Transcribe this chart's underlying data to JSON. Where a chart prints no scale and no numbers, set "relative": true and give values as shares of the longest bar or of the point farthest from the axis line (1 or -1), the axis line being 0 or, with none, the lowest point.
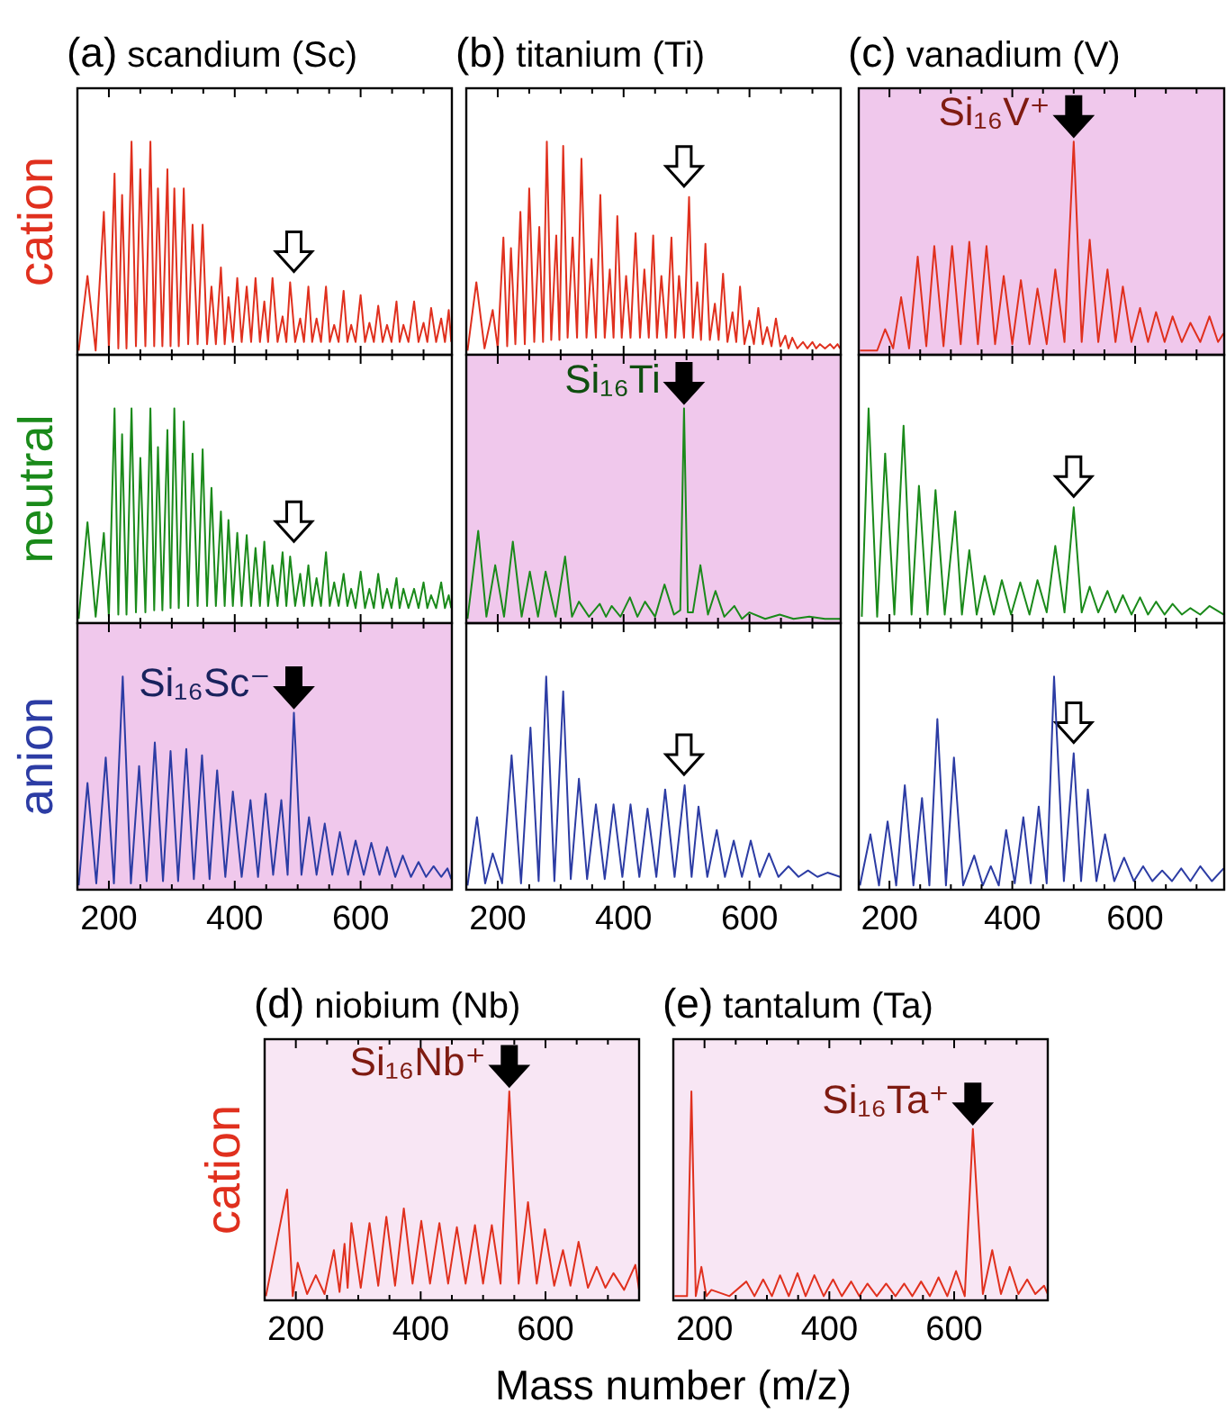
{
  "chart_data": [
    {
      "type": "line",
      "title": "(a) scandium (Sc)",
      "ylabel": "cation",
      "color": "#e0301e",
      "relative": true,
      "tick_labels": false,
      "xlim": [
        150,
        745
      ],
      "xticks": [
        200,
        {
          "value": 250,
          "label": null
        },
        {
          "value": 300,
          "label": null
        },
        {
          "value": 350,
          "label": null
        },
        400,
        {
          "value": 450,
          "label": null
        },
        {
          "value": 500,
          "label": null
        },
        {
          "value": 550,
          "label": null
        },
        600,
        {
          "value": 650,
          "label": null
        },
        {
          "value": 700,
          "label": null
        }
      ],
      "x": [
        152,
        166,
        179,
        192,
        200,
        209,
        215,
        221,
        228,
        236,
        243,
        250,
        258,
        266,
        272,
        278,
        285,
        293,
        298,
        304,
        311,
        319,
        326,
        333,
        341,
        349,
        356,
        363,
        370,
        378,
        384,
        390,
        397,
        404,
        411,
        419,
        426,
        433,
        440,
        447,
        453,
        460,
        468,
        476,
        482,
        488,
        496,
        504,
        510,
        517,
        523,
        530,
        537,
        545,
        551,
        558,
        565,
        573,
        579,
        585,
        592,
        600,
        607,
        614,
        621,
        628,
        635,
        642,
        649,
        657,
        662,
        668,
        676,
        685,
        692,
        700,
        706,
        712,
        720,
        728,
        734,
        740,
        744
      ],
      "values": [
        0.02,
        0.37,
        0.02,
        0.67,
        0.03,
        0.85,
        0.03,
        0.75,
        0.03,
        1,
        0.04,
        0.87,
        0.04,
        1,
        0.04,
        0.78,
        0.04,
        0.87,
        0.04,
        0.78,
        0.04,
        0.78,
        0.05,
        0.61,
        0.05,
        0.61,
        0.05,
        0.32,
        0.05,
        0.41,
        0.05,
        0.27,
        0.06,
        0.36,
        0.06,
        0.32,
        0.06,
        0.36,
        0.06,
        0.25,
        0.06,
        0.36,
        0.06,
        0.18,
        0.06,
        0.34,
        0.06,
        0.17,
        0.06,
        0.32,
        0.06,
        0.17,
        0.06,
        0.32,
        0.06,
        0.14,
        0.06,
        0.3,
        0.06,
        0.14,
        0.06,
        0.28,
        0.06,
        0.15,
        0.06,
        0.23,
        0.06,
        0.14,
        0.06,
        0.25,
        0.06,
        0.14,
        0.06,
        0.25,
        0.06,
        0.15,
        0.06,
        0.22,
        0.06,
        0.17,
        0.06,
        0.21,
        0.06
      ]
    },
    {
      "type": "line",
      "title": "(b) titanium (Ti)",
      "color": "#e0301e",
      "relative": true,
      "tick_labels": false,
      "xlim": [
        150,
        745
      ],
      "xticks": [
        200,
        {
          "value": 250,
          "label": null
        },
        {
          "value": 300,
          "label": null
        },
        {
          "value": 350,
          "label": null
        },
        400,
        {
          "value": 450,
          "label": null
        },
        {
          "value": 500,
          "label": null
        },
        {
          "value": 550,
          "label": null
        },
        600,
        {
          "value": 650,
          "label": null
        },
        {
          "value": 700,
          "label": null
        }
      ],
      "x": [
        152,
        166,
        179,
        192,
        200,
        209,
        215,
        221,
        228,
        236,
        243,
        250,
        258,
        266,
        272,
        278,
        285,
        293,
        298,
        304,
        311,
        319,
        326,
        333,
        341,
        349,
        356,
        363,
        370,
        378,
        384,
        390,
        397,
        404,
        411,
        419,
        426,
        433,
        440,
        447,
        453,
        460,
        468,
        476,
        482,
        488,
        496,
        504,
        510,
        517,
        523,
        530,
        537,
        545,
        551,
        558,
        565,
        573,
        579,
        585,
        592,
        600,
        607,
        614,
        621,
        628,
        635,
        642,
        649,
        657,
        662,
        668,
        676,
        685,
        692,
        700,
        706,
        712,
        720,
        728,
        734,
        740,
        744
      ],
      "values": [
        0.02,
        0.34,
        0.03,
        0.21,
        0.03,
        0.55,
        0.04,
        0.5,
        0.05,
        0.67,
        0.05,
        0.78,
        0.06,
        0.6,
        0.06,
        1,
        0.07,
        0.56,
        0.07,
        0.98,
        0.08,
        0.55,
        0.08,
        0.92,
        0.08,
        0.45,
        0.08,
        0.75,
        0.08,
        0.4,
        0.08,
        0.65,
        0.08,
        0.37,
        0.08,
        0.57,
        0.08,
        0.4,
        0.08,
        0.56,
        0.08,
        0.37,
        0.08,
        0.55,
        0.08,
        0.37,
        0.08,
        0.74,
        0.08,
        0.34,
        0.07,
        0.52,
        0.07,
        0.24,
        0.07,
        0.38,
        0.06,
        0.2,
        0.06,
        0.32,
        0.05,
        0.16,
        0.05,
        0.22,
        0.05,
        0.13,
        0.04,
        0.17,
        0.04,
        0.09,
        0.03,
        0.08,
        0.03,
        0.06,
        0.03,
        0.06,
        0.03,
        0.05,
        0.03,
        0.05,
        0.03,
        0.05,
        0.03
      ]
    },
    {
      "type": "line",
      "title": "(c) vanadium (V)",
      "color": "#e0301e",
      "relative": true,
      "tick_labels": false,
      "xlim": [
        150,
        745
      ],
      "xticks": [
        200,
        {
          "value": 250,
          "label": null
        },
        {
          "value": 300,
          "label": null
        },
        {
          "value": 350,
          "label": null
        },
        400,
        {
          "value": 450,
          "label": null
        },
        {
          "value": 500,
          "label": null
        },
        {
          "value": 550,
          "label": null
        },
        600,
        {
          "value": 650,
          "label": null
        },
        {
          "value": 700,
          "label": null
        }
      ],
      "bands": [
        {
          "axis": "x",
          "from": 150,
          "to": 745,
          "color": "#f0c8ec"
        }
      ],
      "annotations": [
        {
          "text": "Si₁₆V⁺",
          "x": 500,
          "y": 1
        }
      ],
      "x": [
        152,
        180,
        193,
        206,
        219,
        232,
        246,
        260,
        273,
        288,
        302,
        316,
        330,
        344,
        358,
        372,
        386,
        400,
        414,
        428,
        441,
        456,
        470,
        485,
        500,
        513,
        526,
        540,
        555,
        568,
        580,
        594,
        608,
        621,
        634,
        648,
        661,
        676,
        690,
        706,
        721,
        735,
        744
      ],
      "values": [
        0.02,
        0.02,
        0.12,
        0.03,
        0.27,
        0.03,
        0.46,
        0.04,
        0.51,
        0.04,
        0.51,
        0.05,
        0.53,
        0.05,
        0.51,
        0.05,
        0.37,
        0.05,
        0.35,
        0.05,
        0.31,
        0.05,
        0.4,
        0.06,
        1,
        0.06,
        0.54,
        0.06,
        0.4,
        0.06,
        0.32,
        0.06,
        0.22,
        0.06,
        0.2,
        0.06,
        0.18,
        0.06,
        0.15,
        0.06,
        0.18,
        0.06,
        0.1
      ]
    },
    {
      "type": "line",
      "ylabel": "neutral",
      "color": "#1a8a1a",
      "relative": true,
      "tick_labels": false,
      "xlim": [
        150,
        745
      ],
      "xticks": [
        200,
        {
          "value": 250,
          "label": null
        },
        {
          "value": 300,
          "label": null
        },
        {
          "value": 350,
          "label": null
        },
        400,
        {
          "value": 450,
          "label": null
        },
        {
          "value": 500,
          "label": null
        },
        {
          "value": 550,
          "label": null
        },
        600,
        {
          "value": 650,
          "label": null
        },
        {
          "value": 700,
          "label": null
        }
      ],
      "x": [
        152,
        166,
        179,
        192,
        200,
        209,
        215,
        221,
        228,
        236,
        243,
        250,
        258,
        266,
        272,
        278,
        285,
        293,
        298,
        304,
        311,
        319,
        326,
        333,
        341,
        349,
        356,
        363,
        370,
        378,
        384,
        390,
        397,
        404,
        411,
        419,
        426,
        433,
        440,
        447,
        453,
        460,
        468,
        476,
        482,
        488,
        496,
        504,
        510,
        517,
        523,
        530,
        537,
        545,
        551,
        558,
        565,
        573,
        579,
        585,
        592,
        600,
        607,
        614,
        621,
        628,
        635,
        642,
        649,
        657,
        662,
        668,
        676,
        685,
        692,
        700,
        706,
        712,
        720,
        728,
        734,
        740,
        744
      ],
      "values": [
        0.02,
        0.47,
        0.03,
        0.42,
        0.03,
        1,
        0.04,
        0.88,
        0.04,
        1,
        0.05,
        0.77,
        0.05,
        1,
        0.06,
        0.82,
        0.06,
        0.9,
        0.07,
        1,
        0.07,
        0.94,
        0.08,
        0.79,
        0.08,
        0.81,
        0.08,
        0.63,
        0.08,
        0.52,
        0.08,
        0.48,
        0.08,
        0.42,
        0.08,
        0.41,
        0.08,
        0.35,
        0.08,
        0.38,
        0.08,
        0.27,
        0.08,
        0.33,
        0.08,
        0.31,
        0.08,
        0.23,
        0.08,
        0.27,
        0.08,
        0.21,
        0.08,
        0.33,
        0.08,
        0.19,
        0.08,
        0.23,
        0.08,
        0.16,
        0.07,
        0.24,
        0.07,
        0.16,
        0.07,
        0.23,
        0.07,
        0.16,
        0.07,
        0.21,
        0.07,
        0.16,
        0.07,
        0.16,
        0.07,
        0.19,
        0.07,
        0.13,
        0.07,
        0.19,
        0.07,
        0.13,
        0.07
      ]
    },
    {
      "type": "line",
      "color": "#1a8a1a",
      "relative": true,
      "tick_labels": false,
      "xlim": [
        150,
        745
      ],
      "xticks": [
        200,
        {
          "value": 250,
          "label": null
        },
        {
          "value": 300,
          "label": null
        },
        {
          "value": 350,
          "label": null
        },
        400,
        {
          "value": 450,
          "label": null
        },
        {
          "value": 500,
          "label": null
        },
        {
          "value": 550,
          "label": null
        },
        600,
        {
          "value": 650,
          "label": null
        },
        {
          "value": 700,
          "label": null
        }
      ],
      "bands": [
        {
          "axis": "x",
          "from": 150,
          "to": 745,
          "color": "#f0c8ec"
        }
      ],
      "annotations": [
        {
          "text": "Si₁₆Ti",
          "x": 496,
          "y": 1
        }
      ],
      "x": [
        152,
        169,
        182,
        196,
        210,
        224,
        238,
        251,
        264,
        276,
        292,
        307,
        318,
        329,
        345,
        362,
        372,
        381,
        395,
        410,
        422,
        434,
        450,
        465,
        480,
        490,
        496,
        502,
        510,
        522,
        534,
        546,
        560,
        576,
        588,
        600,
        625,
        648,
        670,
        695,
        720,
        744
      ],
      "values": [
        0.02,
        0.43,
        0.03,
        0.27,
        0.03,
        0.38,
        0.03,
        0.24,
        0.03,
        0.24,
        0.03,
        0.31,
        0.03,
        0.1,
        0.03,
        0.09,
        0.03,
        0.08,
        0.03,
        0.12,
        0.03,
        0.1,
        0.03,
        0.18,
        0.04,
        0.06,
        1,
        0.05,
        0.05,
        0.27,
        0.04,
        0.15,
        0.03,
        0.08,
        0.02,
        0.05,
        0.02,
        0.04,
        0.02,
        0.03,
        0.02,
        0.02
      ]
    },
    {
      "type": "line",
      "color": "#1a8a1a",
      "relative": true,
      "tick_labels": false,
      "xlim": [
        150,
        745
      ],
      "xticks": [
        200,
        {
          "value": 250,
          "label": null
        },
        {
          "value": 300,
          "label": null
        },
        {
          "value": 350,
          "label": null
        },
        400,
        {
          "value": 450,
          "label": null
        },
        {
          "value": 500,
          "label": null
        },
        {
          "value": 550,
          "label": null
        },
        600,
        {
          "value": 650,
          "label": null
        },
        {
          "value": 700,
          "label": null
        }
      ],
      "x": [
        155,
        166,
        180,
        193,
        208,
        223,
        236,
        248,
        262,
        275,
        290,
        307,
        318,
        330,
        342,
        355,
        370,
        383,
        398,
        413,
        428,
        441,
        456,
        470,
        485,
        500,
        513,
        526,
        540,
        555,
        568,
        580,
        594,
        608,
        621,
        634,
        648,
        661,
        676,
        690,
        706,
        721,
        744
      ],
      "values": [
        0.03,
        1,
        0.03,
        0.79,
        0.04,
        0.92,
        0.04,
        0.64,
        0.04,
        0.62,
        0.04,
        0.52,
        0.04,
        0.34,
        0.04,
        0.22,
        0.04,
        0.2,
        0.04,
        0.19,
        0.04,
        0.2,
        0.05,
        0.36,
        0.05,
        0.54,
        0.05,
        0.17,
        0.05,
        0.15,
        0.05,
        0.13,
        0.04,
        0.12,
        0.04,
        0.1,
        0.04,
        0.09,
        0.04,
        0.07,
        0.04,
        0.08,
        0.04
      ]
    },
    {
      "type": "line",
      "ylabel": "anion",
      "color": "#2c3ca4",
      "relative": true,
      "tick_labels": "x",
      "xlim": [
        150,
        745
      ],
      "xticks": [
        200,
        {
          "value": 250,
          "label": null
        },
        {
          "value": 300,
          "label": null
        },
        {
          "value": 350,
          "label": null
        },
        400,
        {
          "value": 450,
          "label": null
        },
        {
          "value": 500,
          "label": null
        },
        {
          "value": 550,
          "label": null
        },
        600,
        {
          "value": 650,
          "label": null
        },
        {
          "value": 700,
          "label": null
        }
      ],
      "bands": [
        {
          "axis": "x",
          "from": 150,
          "to": 745,
          "color": "#f0c8ec"
        }
      ],
      "annotations": [
        {
          "text": "Si₁₆Sc⁻",
          "x": 494,
          "y": 0.83
        }
      ],
      "x": [
        152,
        166,
        180,
        195,
        208,
        222,
        235,
        248,
        260,
        273,
        286,
        298,
        310,
        323,
        335,
        348,
        360,
        372,
        385,
        397,
        411,
        425,
        437,
        449,
        461,
        474,
        484,
        494,
        506,
        518,
        530,
        543,
        555,
        567,
        580,
        592,
        605,
        617,
        630,
        642,
        655,
        667,
        680,
        692,
        704,
        716,
        728,
        738,
        744
      ],
      "values": [
        0.02,
        0.5,
        0.03,
        0.62,
        0.03,
        1,
        0.03,
        0.58,
        0.04,
        0.69,
        0.04,
        0.65,
        0.04,
        0.66,
        0.05,
        0.63,
        0.05,
        0.56,
        0.06,
        0.46,
        0.06,
        0.42,
        0.06,
        0.45,
        0.07,
        0.42,
        0.07,
        0.83,
        0.07,
        0.34,
        0.07,
        0.31,
        0.07,
        0.27,
        0.07,
        0.23,
        0.07,
        0.22,
        0.07,
        0.2,
        0.06,
        0.16,
        0.06,
        0.13,
        0.06,
        0.11,
        0.06,
        0.1,
        0.05
      ]
    },
    {
      "type": "line",
      "color": "#2c3ca4",
      "relative": true,
      "tick_labels": "x",
      "xlim": [
        150,
        745
      ],
      "xticks": [
        200,
        {
          "value": 250,
          "label": null
        },
        {
          "value": 300,
          "label": null
        },
        {
          "value": 350,
          "label": null
        },
        400,
        {
          "value": 450,
          "label": null
        },
        {
          "value": 500,
          "label": null
        },
        {
          "value": 550,
          "label": null
        },
        600,
        {
          "value": 650,
          "label": null
        },
        {
          "value": 700,
          "label": null
        }
      ],
      "x": [
        152,
        167,
        180,
        192,
        207,
        222,
        237,
        252,
        265,
        277,
        290,
        304,
        316,
        329,
        342,
        356,
        370,
        384,
        398,
        411,
        425,
        438,
        452,
        466,
        481,
        497,
        508,
        519,
        533,
        548,
        561,
        575,
        588,
        602,
        616,
        631,
        646,
        662,
        678,
        693,
        708,
        724,
        744
      ],
      "values": [
        0.02,
        0.34,
        0.03,
        0.17,
        0.03,
        0.63,
        0.03,
        0.76,
        0.04,
        1,
        0.04,
        0.93,
        0.05,
        0.52,
        0.05,
        0.4,
        0.05,
        0.4,
        0.06,
        0.4,
        0.06,
        0.38,
        0.06,
        0.47,
        0.06,
        0.49,
        0.06,
        0.39,
        0.06,
        0.28,
        0.06,
        0.23,
        0.06,
        0.23,
        0.06,
        0.17,
        0.06,
        0.11,
        0.06,
        0.09,
        0.06,
        0.08,
        0.06
      ]
    },
    {
      "type": "line",
      "color": "#2c3ca4",
      "relative": true,
      "tick_labels": "x",
      "xlim": [
        150,
        745
      ],
      "xticks": [
        200,
        {
          "value": 250,
          "label": null
        },
        {
          "value": 300,
          "label": null
        },
        {
          "value": 350,
          "label": null
        },
        400,
        {
          "value": 450,
          "label": null
        },
        {
          "value": 500,
          "label": null
        },
        {
          "value": 550,
          "label": null
        },
        600,
        {
          "value": 650,
          "label": null
        },
        {
          "value": 700,
          "label": null
        }
      ],
      "x": [
        152,
        169,
        183,
        197,
        211,
        225,
        239,
        253,
        265,
        278,
        292,
        305,
        320,
        338,
        352,
        365,
        378,
        390,
        404,
        418,
        430,
        443,
        456,
        468,
        484,
        500,
        512,
        523,
        537,
        551,
        566,
        582,
        598,
        613,
        628,
        644,
        660,
        675,
        690,
        706,
        725,
        744
      ],
      "values": [
        0.02,
        0.26,
        0.02,
        0.32,
        0.02,
        0.49,
        0.02,
        0.43,
        0.02,
        0.8,
        0.02,
        0.62,
        0.02,
        0.16,
        0.02,
        0.11,
        0.02,
        0.28,
        0.03,
        0.34,
        0.03,
        0.39,
        0.03,
        1,
        0.04,
        0.64,
        0.04,
        0.47,
        0.04,
        0.26,
        0.04,
        0.15,
        0.04,
        0.11,
        0.04,
        0.09,
        0.04,
        0.1,
        0.04,
        0.11,
        0.04,
        0.1
      ]
    },
    {
      "type": "line",
      "title": "(d) niobium (Nb)",
      "ylabel": "cation",
      "xlabel": "Mass number (m/z)",
      "color": "#e0301e",
      "relative": true,
      "tick_labels": "x",
      "xlim": [
        150,
        750
      ],
      "xticks": [
        200,
        {
          "value": 250,
          "label": null
        },
        {
          "value": 300,
          "label": null
        },
        {
          "value": 350,
          "label": null
        },
        400,
        {
          "value": 450,
          "label": null
        },
        {
          "value": 500,
          "label": null
        },
        {
          "value": 550,
          "label": null
        },
        600,
        {
          "value": 650,
          "label": null
        },
        {
          "value": 700,
          "label": null
        }
      ],
      "bands": [
        {
          "axis": "x",
          "from": 150,
          "to": 750,
          "color": "#f8e6f4"
        }
      ],
      "annotations": [
        {
          "text": "Si₁₆Nb⁺",
          "x": 542,
          "y": 1
        }
      ],
      "x": [
        152,
        186,
        195,
        203,
        218,
        232,
        246,
        261,
        270,
        278,
        283,
        289,
        304,
        318,
        332,
        345,
        359,
        373,
        387,
        401,
        415,
        430,
        444,
        458,
        472,
        487,
        500,
        514,
        528,
        542,
        557,
        572,
        586,
        599,
        614,
        628,
        640,
        653,
        668,
        682,
        696,
        709,
        726,
        744,
        750
      ],
      "values": [
        0.02,
        0.53,
        0.02,
        0.18,
        0.03,
        0.12,
        0.03,
        0.24,
        0.04,
        0.27,
        0.06,
        0.37,
        0.06,
        0.37,
        0.07,
        0.4,
        0.07,
        0.44,
        0.08,
        0.38,
        0.08,
        0.37,
        0.08,
        0.35,
        0.08,
        0.36,
        0.08,
        0.36,
        0.08,
        1,
        0.08,
        0.47,
        0.08,
        0.34,
        0.07,
        0.24,
        0.07,
        0.28,
        0.06,
        0.16,
        0.06,
        0.13,
        0.05,
        0.17,
        0.05
      ]
    },
    {
      "type": "line",
      "title": "(e) tantalum (Ta)",
      "color": "#e0301e",
      "relative": true,
      "tick_labels": "x",
      "xlim": [
        150,
        750
      ],
      "xticks": [
        200,
        {
          "value": 250,
          "label": null
        },
        {
          "value": 300,
          "label": null
        },
        {
          "value": 350,
          "label": null
        },
        400,
        {
          "value": 450,
          "label": null
        },
        {
          "value": 500,
          "label": null
        },
        {
          "value": 550,
          "label": null
        },
        600,
        {
          "value": 650,
          "label": null
        },
        {
          "value": 700,
          "label": null
        }
      ],
      "bands": [
        {
          "axis": "x",
          "from": 150,
          "to": 750,
          "color": "#f8e6f4"
        }
      ],
      "annotations": [
        {
          "text": "Si₁₆Ta⁺",
          "x": 630,
          "y": 0.82
        }
      ],
      "x": [
        152,
        172,
        179,
        186,
        195,
        203,
        211,
        240,
        267,
        280,
        294,
        308,
        321,
        335,
        349,
        362,
        376,
        391,
        406,
        420,
        435,
        448,
        461,
        476,
        491,
        506,
        520,
        533,
        547,
        561,
        575,
        589,
        603,
        617,
        630,
        646,
        661,
        675,
        689,
        703,
        717,
        730,
        744,
        750
      ],
      "values": [
        0.02,
        0.02,
        1,
        0.02,
        0.16,
        0.02,
        0.05,
        0.02,
        0.09,
        0.02,
        0.1,
        0.02,
        0.12,
        0.02,
        0.13,
        0.02,
        0.12,
        0.02,
        0.1,
        0.02,
        0.09,
        0.02,
        0.08,
        0.02,
        0.08,
        0.02,
        0.08,
        0.02,
        0.09,
        0.02,
        0.11,
        0.02,
        0.14,
        0.02,
        0.82,
        0.03,
        0.24,
        0.03,
        0.16,
        0.03,
        0.1,
        0.03,
        0.07,
        0.03
      ]
    }
  ]
}
